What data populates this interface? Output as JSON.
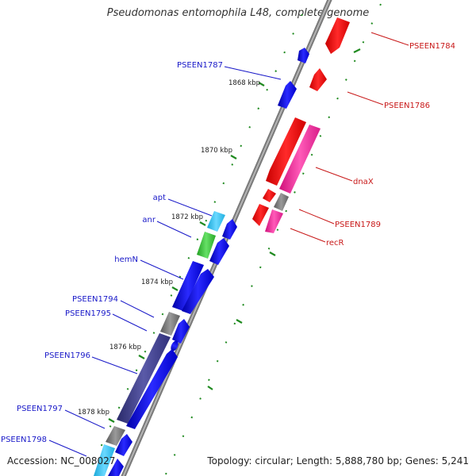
{
  "title": "Pseudomonas entomophila L48, complete genome",
  "footer": {
    "accession": "Accession: NC_008027",
    "topology": "Topology: circular; Length: 5,888,780 bp; Genes: 5,241"
  },
  "colors": {
    "left_label": "#1818c8",
    "right_label": "#c81818",
    "tick": "#1f8a1f",
    "backbone": "#8c8c8c"
  },
  "scale_ticks": [
    "1868 kbp",
    "1870 kbp",
    "1872 kbp",
    "1874 kbp",
    "1876 kbp",
    "1878 kbp"
  ],
  "left_genes": [
    "PSEEN1787",
    "apt",
    "anr",
    "hemN",
    "PSEEN1794",
    "PSEEN1795",
    "PSEEN1796",
    "PSEEN1797",
    "PSEEN1798"
  ],
  "right_genes": [
    "PSEEN1784",
    "PSEEN1786",
    "dnaX",
    "PSEEN1789",
    "recR"
  ]
}
